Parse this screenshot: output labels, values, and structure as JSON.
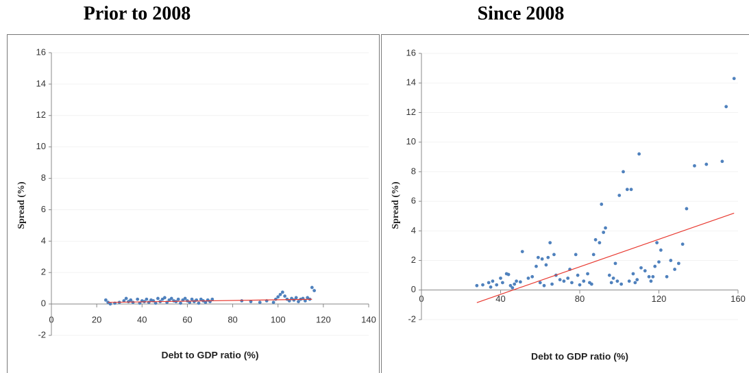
{
  "chart_data": [
    {
      "type": "scatter",
      "title": "Prior to 2008",
      "x_label": "Debt to GDP ratio (%)",
      "y_label": "Spread (%)",
      "xlim": [
        0,
        140
      ],
      "xticks": [
        0,
        20,
        40,
        60,
        80,
        100,
        120,
        140
      ],
      "ylim": [
        -2,
        16
      ],
      "yticks": [
        -2,
        0,
        2,
        4,
        6,
        8,
        10,
        12,
        14,
        16
      ],
      "grid": true,
      "series": [
        {
          "color": "#4f81bd",
          "x": [
            24,
            25,
            26,
            28,
            30,
            32,
            33,
            34,
            35,
            36,
            38,
            39,
            40,
            41,
            42,
            43,
            44,
            45,
            46,
            47,
            48,
            49,
            50,
            51,
            52,
            53,
            54,
            55,
            56,
            57,
            58,
            59,
            60,
            61,
            62,
            63,
            64,
            65,
            66,
            67,
            68,
            69,
            70,
            71,
            84,
            88,
            92,
            95,
            98,
            99,
            100,
            101,
            102,
            103,
            104,
            105,
            106,
            107,
            108,
            109,
            110,
            111,
            112,
            113,
            114,
            115,
            116
          ],
          "values": [
            0.25,
            0.1,
            0.0,
            0.05,
            0.1,
            0.2,
            0.35,
            0.15,
            0.25,
            0.1,
            0.3,
            0.05,
            0.2,
            0.15,
            0.3,
            0.1,
            0.25,
            0.2,
            0.05,
            0.35,
            0.15,
            0.3,
            0.4,
            0.1,
            0.25,
            0.35,
            0.2,
            0.15,
            0.3,
            0.05,
            0.25,
            0.35,
            0.2,
            0.1,
            0.3,
            0.15,
            0.25,
            0.05,
            0.3,
            0.2,
            0.1,
            0.25,
            0.15,
            0.3,
            0.2,
            0.15,
            0.1,
            0.2,
            0.1,
            0.3,
            0.45,
            0.6,
            0.75,
            0.5,
            0.3,
            0.2,
            0.35,
            0.25,
            0.4,
            0.15,
            0.3,
            0.35,
            0.2,
            0.4,
            0.3,
            1.05,
            0.85
          ]
        }
      ],
      "trendline": {
        "color": "#e8382f",
        "x": [
          25,
          115
        ],
        "values": [
          0.1,
          0.3
        ]
      }
    },
    {
      "type": "scatter",
      "title": "Since 2008",
      "x_label": "Debt to GDP ratio (%)",
      "y_label": "Spread (%)",
      "xlim": [
        0,
        160
      ],
      "xticks": [
        0,
        40,
        80,
        120,
        160
      ],
      "ylim": [
        -2,
        16
      ],
      "yticks": [
        -2,
        0,
        2,
        4,
        6,
        8,
        10,
        12,
        14,
        16
      ],
      "grid": true,
      "series": [
        {
          "color": "#4f81bd",
          "x": [
            28,
            31,
            34,
            35,
            36,
            38,
            40,
            41,
            43,
            44,
            45,
            46,
            47,
            48,
            50,
            51,
            54,
            56,
            58,
            59,
            60,
            61,
            62,
            63,
            64,
            65,
            66,
            67,
            68,
            70,
            72,
            74,
            75,
            76,
            78,
            79,
            80,
            82,
            84,
            85,
            86,
            87,
            88,
            90,
            91,
            92,
            93,
            95,
            96,
            97,
            98,
            99,
            100,
            101,
            102,
            104,
            105,
            106,
            107,
            108,
            109,
            110,
            111,
            113,
            115,
            116,
            117,
            118,
            119,
            120,
            121,
            124,
            126,
            128,
            130,
            132,
            134,
            138,
            144,
            152,
            154,
            158
          ],
          "values": [
            0.3,
            0.35,
            0.5,
            0.2,
            0.6,
            0.35,
            0.8,
            0.5,
            1.1,
            1.05,
            0.3,
            0.15,
            0.4,
            0.6,
            0.55,
            2.6,
            0.8,
            0.9,
            1.6,
            2.2,
            0.5,
            2.1,
            0.3,
            1.7,
            2.2,
            3.2,
            0.4,
            2.4,
            1.0,
            0.7,
            0.6,
            0.8,
            1.4,
            0.5,
            2.4,
            1.0,
            0.35,
            0.6,
            1.1,
            0.5,
            0.4,
            2.4,
            3.4,
            3.2,
            5.8,
            3.9,
            4.2,
            1.0,
            0.5,
            0.8,
            1.8,
            0.6,
            6.4,
            0.4,
            8.0,
            6.8,
            0.6,
            6.8,
            1.1,
            0.5,
            0.7,
            9.2,
            1.5,
            1.3,
            0.9,
            0.6,
            0.9,
            1.6,
            3.2,
            1.9,
            2.7,
            0.9,
            2.0,
            1.4,
            1.8,
            3.1,
            5.5,
            8.4,
            8.5,
            8.7,
            12.4,
            14.3
          ]
        }
      ],
      "trendline": {
        "color": "#e8382f",
        "x": [
          28,
          158
        ],
        "values": [
          -0.85,
          5.2
        ]
      }
    }
  ]
}
